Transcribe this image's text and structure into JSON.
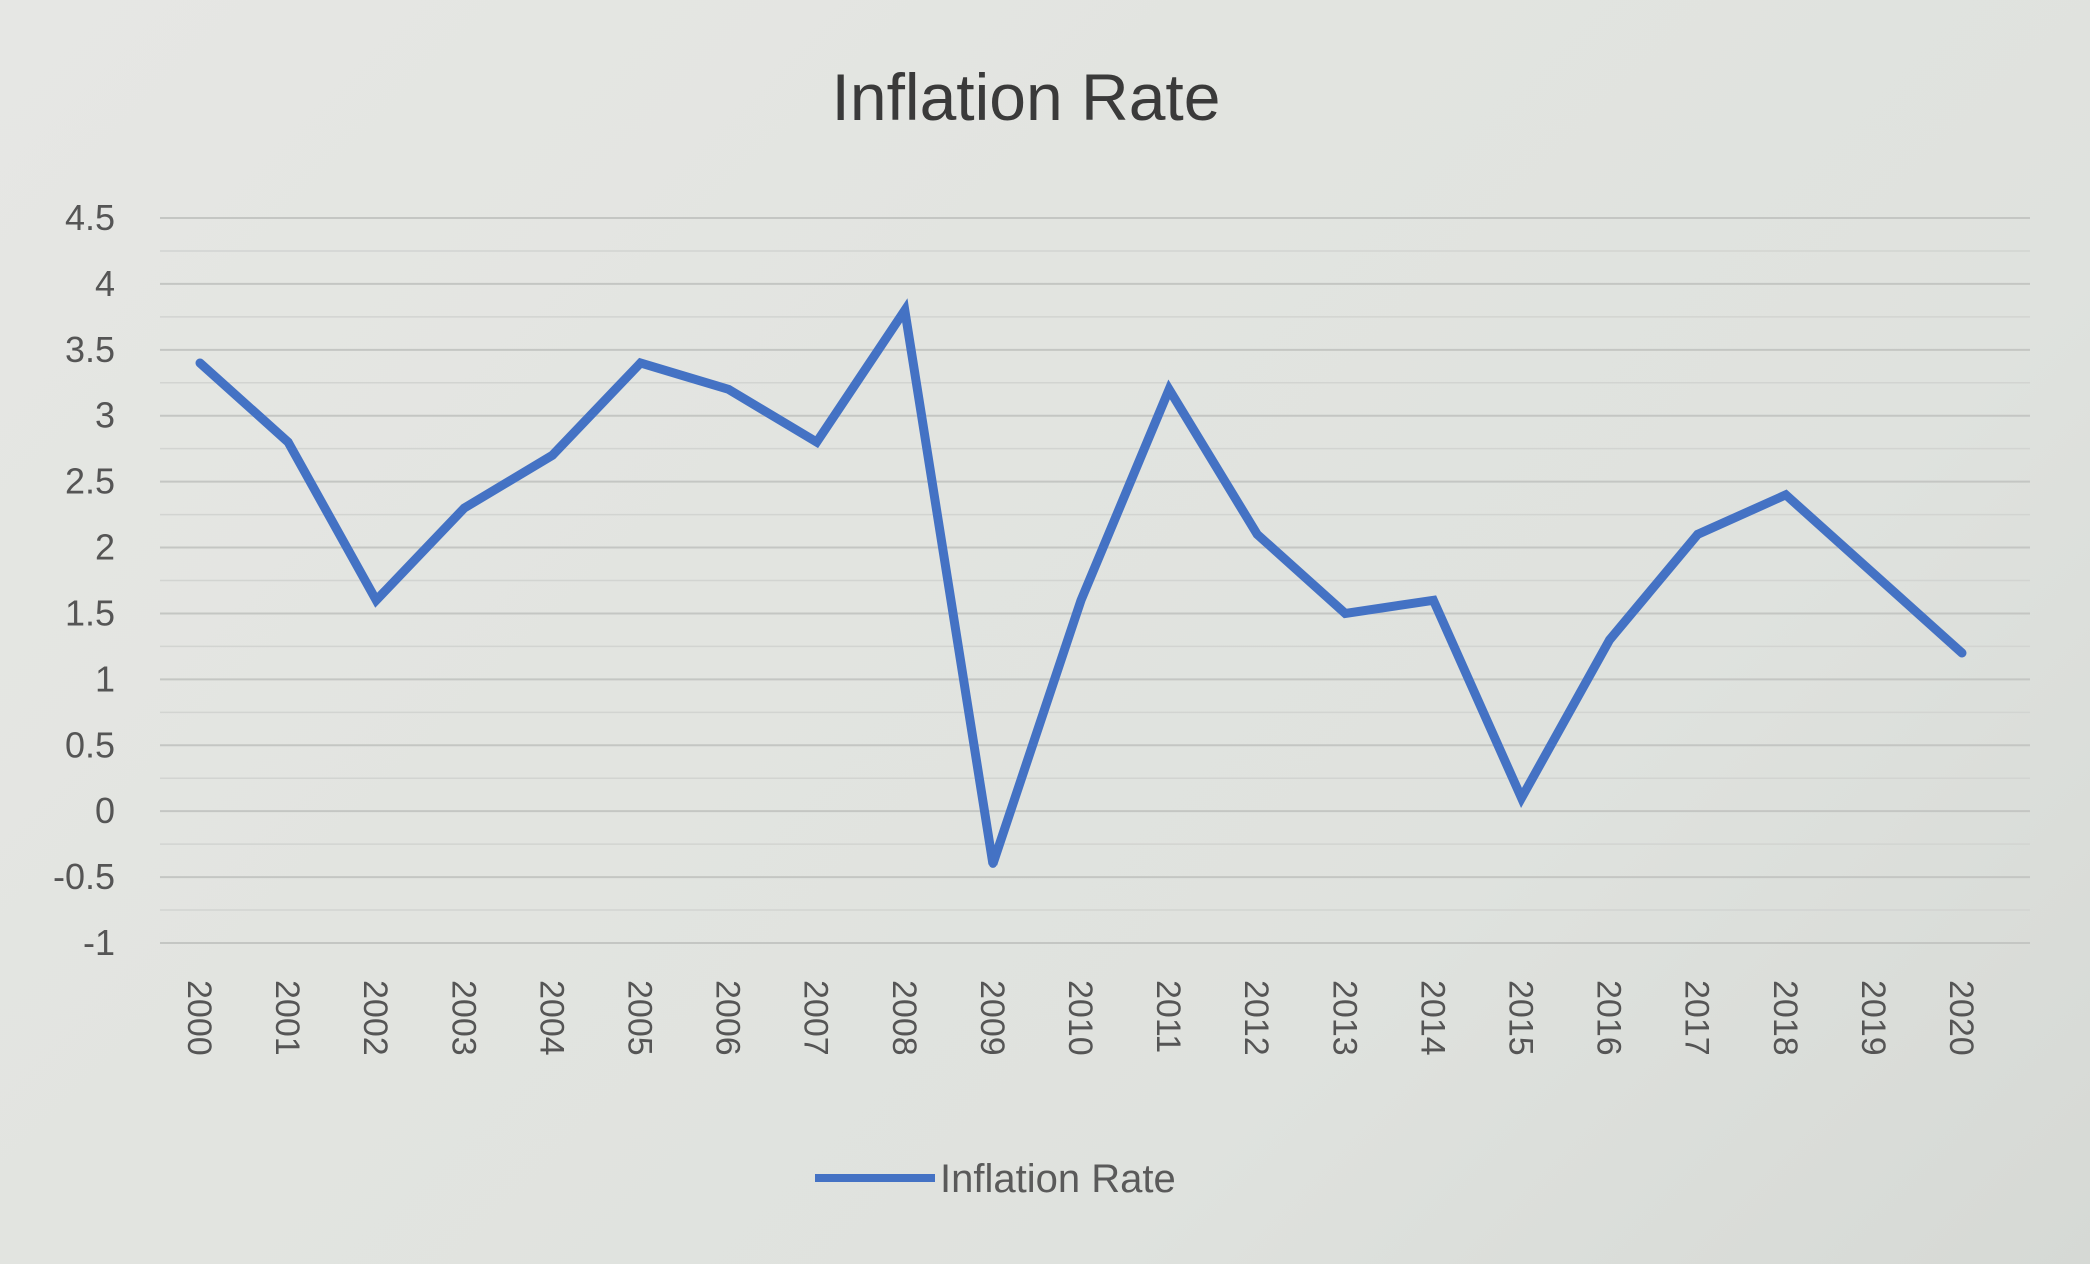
{
  "chart_data": {
    "type": "line",
    "title": "Inflation Rate",
    "xlabel": "",
    "ylabel": "",
    "categories": [
      "2000",
      "2001",
      "2002",
      "2003",
      "2004",
      "2005",
      "2006",
      "2007",
      "2008",
      "2009",
      "2010",
      "2011",
      "2012",
      "2013",
      "2014",
      "2015",
      "2016",
      "2017",
      "2018",
      "2019",
      "2020"
    ],
    "series": [
      {
        "name": "Inflation Rate",
        "color": "#4472c4",
        "values": [
          3.4,
          2.8,
          1.6,
          2.3,
          2.7,
          3.4,
          3.2,
          2.8,
          3.8,
          -0.4,
          1.6,
          3.2,
          2.1,
          1.5,
          1.6,
          0.1,
          1.3,
          2.1,
          2.4,
          1.8,
          1.2
        ]
      }
    ],
    "ylim": [
      -1,
      4.5
    ],
    "yticks": [
      "4.5",
      "4",
      "3.5",
      "3",
      "2.5",
      "2",
      "1.5",
      "1",
      "0.5",
      "0",
      "-0.5",
      "-1"
    ],
    "grid": true,
    "legend_position": "bottom"
  }
}
